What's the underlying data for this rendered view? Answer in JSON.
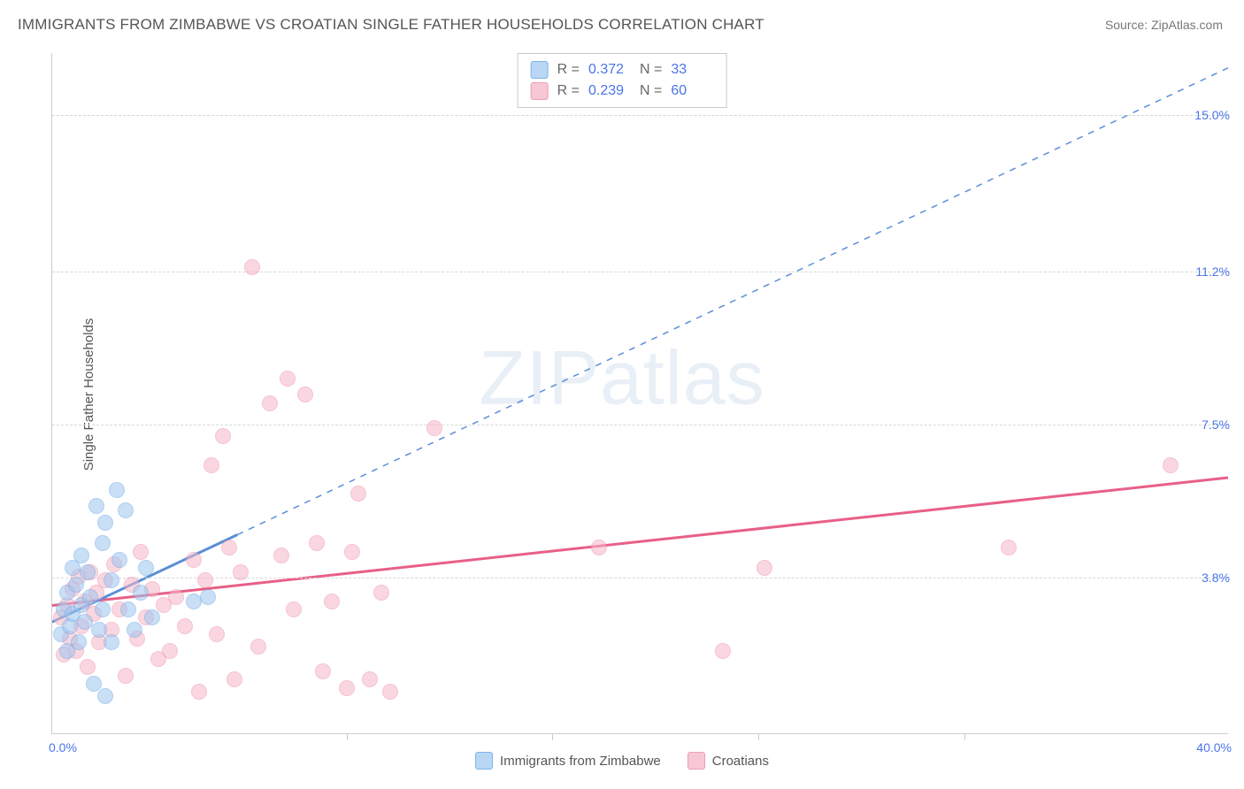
{
  "title": "IMMIGRANTS FROM ZIMBABWE VS CROATIAN SINGLE FATHER HOUSEHOLDS CORRELATION CHART",
  "source": "Source: ZipAtlas.com",
  "ylabel": "Single Father Households",
  "watermark": {
    "left": "ZIP",
    "right": "atlas"
  },
  "chart": {
    "type": "scatter",
    "xlim": [
      0,
      40
    ],
    "ylim": [
      0,
      16.5
    ],
    "x_axis": {
      "min_label": "0.0%",
      "max_label": "40.0%",
      "vtick_positions": [
        10,
        17,
        24,
        31
      ]
    },
    "y_gridlines": [
      {
        "value": 3.8,
        "label": "3.8%"
      },
      {
        "value": 7.5,
        "label": "7.5%"
      },
      {
        "value": 11.2,
        "label": "11.2%"
      },
      {
        "value": 15.0,
        "label": "15.0%"
      }
    ],
    "series_a": {
      "name": "Immigrants from Zimbabwe",
      "color_fill": "#9ec6f0",
      "color_stroke": "#5a8fd6",
      "r_label": "R =",
      "r_value": "0.372",
      "n_label": "N =",
      "n_value": "33",
      "trend": {
        "solid_end_x": 6.3,
        "y_at_0": 2.7,
        "slope_per_x": 0.336
      },
      "points": [
        [
          0.3,
          2.4
        ],
        [
          0.4,
          3.0
        ],
        [
          0.5,
          2.0
        ],
        [
          0.5,
          3.4
        ],
        [
          0.6,
          2.6
        ],
        [
          0.7,
          4.0
        ],
        [
          0.7,
          2.9
        ],
        [
          0.8,
          3.6
        ],
        [
          0.9,
          2.2
        ],
        [
          1.0,
          3.1
        ],
        [
          1.0,
          4.3
        ],
        [
          1.1,
          2.7
        ],
        [
          1.2,
          3.9
        ],
        [
          1.3,
          3.3
        ],
        [
          1.4,
          1.2
        ],
        [
          1.5,
          5.5
        ],
        [
          1.6,
          2.5
        ],
        [
          1.7,
          4.6
        ],
        [
          1.7,
          3.0
        ],
        [
          1.8,
          5.1
        ],
        [
          1.8,
          0.9
        ],
        [
          2.0,
          3.7
        ],
        [
          2.0,
          2.2
        ],
        [
          2.2,
          5.9
        ],
        [
          2.3,
          4.2
        ],
        [
          2.5,
          5.4
        ],
        [
          2.6,
          3.0
        ],
        [
          2.8,
          2.5
        ],
        [
          3.0,
          3.4
        ],
        [
          3.2,
          4.0
        ],
        [
          3.4,
          2.8
        ],
        [
          4.8,
          3.2
        ],
        [
          5.3,
          3.3
        ]
      ]
    },
    "series_b": {
      "name": "Croatians",
      "color_fill": "#f7b8c8",
      "color_stroke": "#e85f88",
      "r_label": "R =",
      "r_value": "0.239",
      "n_label": "N =",
      "n_value": "60",
      "trend": {
        "y_at_0": 3.1,
        "y_at_40": 6.2
      },
      "points": [
        [
          0.3,
          2.8
        ],
        [
          0.4,
          1.9
        ],
        [
          0.5,
          3.1
        ],
        [
          0.6,
          2.3
        ],
        [
          0.7,
          3.5
        ],
        [
          0.8,
          2.0
        ],
        [
          0.9,
          3.8
        ],
        [
          1.0,
          2.6
        ],
        [
          1.1,
          3.2
        ],
        [
          1.2,
          1.6
        ],
        [
          1.3,
          3.9
        ],
        [
          1.4,
          2.9
        ],
        [
          1.5,
          3.4
        ],
        [
          1.6,
          2.2
        ],
        [
          1.8,
          3.7
        ],
        [
          2.0,
          2.5
        ],
        [
          2.1,
          4.1
        ],
        [
          2.3,
          3.0
        ],
        [
          2.5,
          1.4
        ],
        [
          2.7,
          3.6
        ],
        [
          2.9,
          2.3
        ],
        [
          3.0,
          4.4
        ],
        [
          3.2,
          2.8
        ],
        [
          3.4,
          3.5
        ],
        [
          3.6,
          1.8
        ],
        [
          3.8,
          3.1
        ],
        [
          4.0,
          2.0
        ],
        [
          4.2,
          3.3
        ],
        [
          4.5,
          2.6
        ],
        [
          4.8,
          4.2
        ],
        [
          5.0,
          1.0
        ],
        [
          5.2,
          3.7
        ],
        [
          5.4,
          6.5
        ],
        [
          5.6,
          2.4
        ],
        [
          5.8,
          7.2
        ],
        [
          6.0,
          4.5
        ],
        [
          6.2,
          1.3
        ],
        [
          6.4,
          3.9
        ],
        [
          6.8,
          11.3
        ],
        [
          7.0,
          2.1
        ],
        [
          7.4,
          8.0
        ],
        [
          7.8,
          4.3
        ],
        [
          8.0,
          8.6
        ],
        [
          8.2,
          3.0
        ],
        [
          8.6,
          8.2
        ],
        [
          9.0,
          4.6
        ],
        [
          9.2,
          1.5
        ],
        [
          9.5,
          3.2
        ],
        [
          10.0,
          1.1
        ],
        [
          10.2,
          4.4
        ],
        [
          10.4,
          5.8
        ],
        [
          10.8,
          1.3
        ],
        [
          11.2,
          3.4
        ],
        [
          11.5,
          1.0
        ],
        [
          13.0,
          7.4
        ],
        [
          18.6,
          4.5
        ],
        [
          22.8,
          2.0
        ],
        [
          24.2,
          4.0
        ],
        [
          32.5,
          4.5
        ],
        [
          38.0,
          6.5
        ]
      ]
    }
  },
  "bottom_legend": {
    "a": "Immigrants from Zimbabwe",
    "b": "Croatians"
  }
}
